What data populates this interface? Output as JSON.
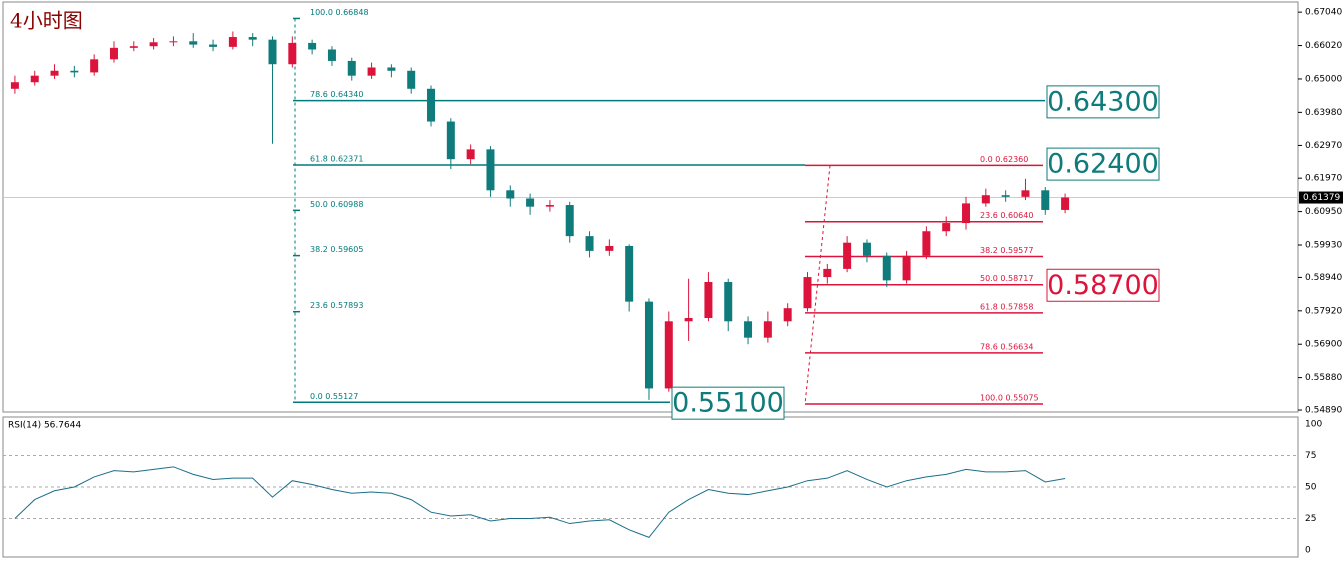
{
  "chart_data": {
    "type": "candlestick",
    "title": "4小时图",
    "ylim": [
      0.5483,
      0.6735
    ],
    "yticks": [
      {
        "value": 0.6704,
        "label": "0.67040"
      },
      {
        "value": 0.6602,
        "label": "0.66020"
      },
      {
        "value": 0.65,
        "label": "0.65000"
      },
      {
        "value": 0.6398,
        "label": "0.63980"
      },
      {
        "value": 0.6297,
        "label": "0.62970"
      },
      {
        "value": 0.6197,
        "label": "0.61970"
      },
      {
        "value": 0.6095,
        "label": "0.60950"
      },
      {
        "value": 0.5993,
        "label": "0.59930"
      },
      {
        "value": 0.5894,
        "label": "0.58940"
      },
      {
        "value": 0.5792,
        "label": "0.57920"
      },
      {
        "value": 0.569,
        "label": "0.56900"
      },
      {
        "value": 0.5588,
        "label": "0.55880"
      },
      {
        "value": 0.5489,
        "label": "0.54890"
      }
    ],
    "up_color": "#dc143c",
    "down_color": "#0f7b7b",
    "open": [
      0.647,
      0.649,
      0.651,
      0.6525,
      0.652,
      0.656,
      0.6595,
      0.66,
      0.6612,
      0.6615,
      0.6605,
      0.6598,
      0.6628,
      0.662,
      0.6545,
      0.661,
      0.659,
      0.6555,
      0.651,
      0.6535,
      0.6525,
      0.647,
      0.637,
      0.6255,
      0.6285,
      0.616,
      0.6135,
      0.611,
      0.6115,
      0.602,
      0.5975,
      0.599,
      0.582,
      0.5555,
      0.576,
      0.577,
      0.588,
      0.576,
      0.571,
      0.576,
      0.58,
      0.5895,
      0.592,
      0.6,
      0.596,
      0.5885,
      0.596,
      0.6035,
      0.606,
      0.612,
      0.6145,
      0.614,
      0.616,
      0.61
    ],
    "high": [
      0.651,
      0.6525,
      0.6545,
      0.654,
      0.6575,
      0.6615,
      0.6615,
      0.6625,
      0.663,
      0.664,
      0.662,
      0.6645,
      0.664,
      0.663,
      0.663,
      0.662,
      0.66,
      0.6565,
      0.655,
      0.6545,
      0.6535,
      0.648,
      0.638,
      0.63,
      0.6295,
      0.6175,
      0.615,
      0.613,
      0.6125,
      0.6035,
      0.601,
      0.5995,
      0.583,
      0.579,
      0.589,
      0.591,
      0.589,
      0.5775,
      0.579,
      0.5815,
      0.591,
      0.5935,
      0.602,
      0.601,
      0.597,
      0.5975,
      0.605,
      0.608,
      0.614,
      0.6165,
      0.616,
      0.6195,
      0.617,
      0.615
    ],
    "low": [
      0.6455,
      0.648,
      0.65,
      0.6505,
      0.651,
      0.655,
      0.6585,
      0.659,
      0.66,
      0.6595,
      0.6585,
      0.659,
      0.66,
      0.6302,
      0.6535,
      0.6575,
      0.654,
      0.6495,
      0.65,
      0.6505,
      0.6455,
      0.6355,
      0.6225,
      0.624,
      0.614,
      0.611,
      0.6085,
      0.6095,
      0.6,
      0.5955,
      0.596,
      0.579,
      0.552,
      0.5545,
      0.57,
      0.576,
      0.573,
      0.569,
      0.5695,
      0.5745,
      0.579,
      0.5875,
      0.591,
      0.594,
      0.5865,
      0.5875,
      0.595,
      0.602,
      0.604,
      0.611,
      0.6125,
      0.613,
      0.6085,
      0.609
    ],
    "close": [
      0.649,
      0.651,
      0.6525,
      0.652,
      0.656,
      0.6595,
      0.66,
      0.6612,
      0.6615,
      0.6605,
      0.6598,
      0.6628,
      0.662,
      0.6545,
      0.661,
      0.659,
      0.6555,
      0.651,
      0.6535,
      0.6525,
      0.647,
      0.637,
      0.6255,
      0.6285,
      0.616,
      0.6135,
      0.611,
      0.6115,
      0.602,
      0.5975,
      0.599,
      0.582,
      0.5555,
      0.576,
      0.577,
      0.588,
      0.576,
      0.571,
      0.576,
      0.58,
      0.5895,
      0.592,
      0.6,
      0.596,
      0.5885,
      0.596,
      0.6035,
      0.606,
      0.612,
      0.6145,
      0.614,
      0.616,
      0.61,
      0.6138
    ],
    "last_price": {
      "value": 0.61379,
      "label": "0.61379"
    },
    "fib_left": {
      "color": "#007a7a",
      "levels": [
        {
          "label": "100.0  0.66848",
          "value": 0.66848
        },
        {
          "label": "78.6  0.64340",
          "value": 0.6434
        },
        {
          "label": "61.8  0.62371",
          "value": 0.62371
        },
        {
          "label": "50.0  0.60988",
          "value": 0.60988
        },
        {
          "label": "38.2  0.59605",
          "value": 0.59605
        },
        {
          "label": "23.6  0.57893",
          "value": 0.57893
        },
        {
          "label": "0.0  0.55127",
          "value": 0.55127
        }
      ]
    },
    "fib_right": {
      "color": "#dc143c",
      "levels": [
        {
          "label": "0.0  0.62360",
          "value": 0.6236
        },
        {
          "label": "23.6  0.60640",
          "value": 0.6064
        },
        {
          "label": "38.2  0.59577",
          "value": 0.59577
        },
        {
          "label": "50.0  0.58717",
          "value": 0.58717
        },
        {
          "label": "61.8  0.57858",
          "value": 0.57858
        },
        {
          "label": "78.6  0.56634",
          "value": 0.56634
        },
        {
          "label": "100.0  0.55075",
          "value": 0.55075
        }
      ]
    },
    "price_boxes": [
      {
        "value": 0.643,
        "label": "0.64300",
        "color": "#0f7b7b"
      },
      {
        "value": 0.624,
        "label": "0.62400",
        "color": "#0f7b7b"
      },
      {
        "value": 0.587,
        "label": "0.58700",
        "color": "#dc143c"
      },
      {
        "value": 0.551,
        "label": "0.55100",
        "color": "#0f7b7b"
      }
    ],
    "rsi": {
      "label": "RSI(14) 56.7644",
      "color": "#1a6e8a",
      "ylim": [
        0,
        100
      ],
      "yticks": [
        100,
        75,
        50,
        25,
        0
      ],
      "values": [
        25,
        40,
        47,
        50,
        58,
        63,
        62,
        64,
        66,
        60,
        56,
        57,
        57,
        42,
        55,
        52,
        48,
        45,
        46,
        45,
        40,
        30,
        27,
        28,
        23,
        25,
        25,
        26,
        21,
        23,
        24,
        16,
        10,
        30,
        40,
        48,
        45,
        44,
        47,
        50,
        55,
        57,
        63,
        56,
        50,
        55,
        58,
        60,
        64,
        62,
        62,
        63,
        54,
        56.7644
      ]
    }
  }
}
